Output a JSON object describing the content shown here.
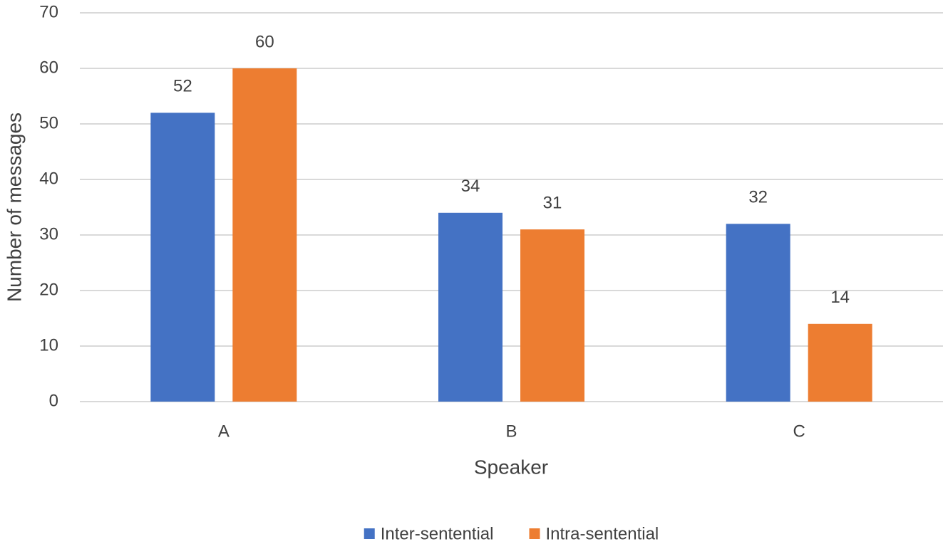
{
  "chart_data": {
    "type": "bar",
    "x_label": "Speaker",
    "y_label": "Number of messages",
    "categories": [
      "A",
      "B",
      "C"
    ],
    "series": [
      {
        "name": "Inter-sentential",
        "color": "#4472c4",
        "values": [
          52,
          34,
          32
        ]
      },
      {
        "name": "Intra-sentential",
        "color": "#ed7d31",
        "values": [
          60,
          31,
          14
        ]
      }
    ],
    "ylim": [
      0,
      70
    ],
    "yticks": [
      0,
      10,
      20,
      30,
      40,
      50,
      60,
      70
    ],
    "grid": true,
    "legend": "bottom"
  }
}
